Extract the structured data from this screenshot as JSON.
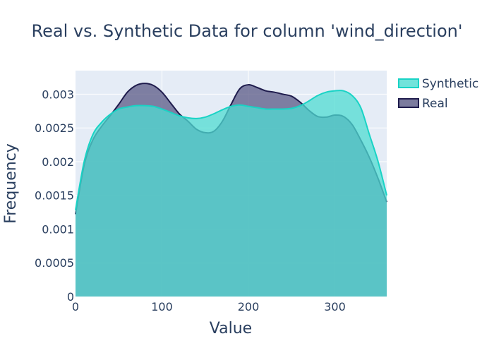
{
  "chart_data": {
    "type": "area",
    "title": "Real vs. Synthetic Data for column 'wind_direction'",
    "xlabel": "Value",
    "ylabel": "Frequency",
    "xlim": [
      0,
      360
    ],
    "ylim": [
      0,
      0.00335
    ],
    "x_ticks": [
      0,
      100,
      200,
      300
    ],
    "x_tick_labels": [
      "0",
      "100",
      "200",
      "300"
    ],
    "y_ticks": [
      0,
      0.0005,
      0.001,
      0.0015,
      0.002,
      0.0025,
      0.003
    ],
    "y_tick_labels": [
      "0",
      "0.0005",
      "0.001",
      "0.0015",
      "0.002",
      "0.0025",
      "0.003"
    ],
    "grid": true,
    "legend_position": "top-right",
    "series": [
      {
        "name": "Real",
        "line_color": "#1f1c4d",
        "fill_color": "#5a5a86",
        "x": [
          0,
          10,
          20,
          30,
          40,
          50,
          60,
          70,
          80,
          90,
          100,
          110,
          120,
          130,
          140,
          150,
          160,
          170,
          180,
          190,
          200,
          210,
          220,
          230,
          240,
          250,
          260,
          270,
          280,
          290,
          300,
          310,
          320,
          330,
          340,
          350,
          360
        ],
        "y": [
          0.00122,
          0.00195,
          0.00232,
          0.00252,
          0.00268,
          0.00285,
          0.00303,
          0.00313,
          0.00316,
          0.00313,
          0.00303,
          0.00287,
          0.00271,
          0.0026,
          0.00248,
          0.00243,
          0.00245,
          0.0026,
          0.00285,
          0.00308,
          0.00314,
          0.0031,
          0.00305,
          0.00303,
          0.003,
          0.00297,
          0.00288,
          0.00276,
          0.00267,
          0.00266,
          0.00269,
          0.00267,
          0.00255,
          0.00232,
          0.00206,
          0.00175,
          0.0014
        ]
      },
      {
        "name": "Synthetic",
        "line_color": "#19d3c5",
        "fill_color": "#4fdcd2",
        "x": [
          0,
          10,
          20,
          30,
          40,
          50,
          60,
          70,
          80,
          90,
          100,
          110,
          120,
          130,
          140,
          150,
          160,
          170,
          180,
          190,
          200,
          210,
          220,
          230,
          240,
          250,
          260,
          270,
          280,
          290,
          300,
          310,
          320,
          330,
          340,
          350,
          360
        ],
        "y": [
          0.00128,
          0.002,
          0.0024,
          0.00258,
          0.0027,
          0.00278,
          0.00281,
          0.00283,
          0.00283,
          0.00282,
          0.00278,
          0.00273,
          0.00268,
          0.00265,
          0.00264,
          0.00266,
          0.00271,
          0.00277,
          0.00282,
          0.00284,
          0.00282,
          0.0028,
          0.00278,
          0.00278,
          0.00278,
          0.00279,
          0.00283,
          0.0029,
          0.00298,
          0.00303,
          0.00305,
          0.00305,
          0.00298,
          0.0028,
          0.0024,
          0.002,
          0.0015
        ]
      }
    ]
  }
}
